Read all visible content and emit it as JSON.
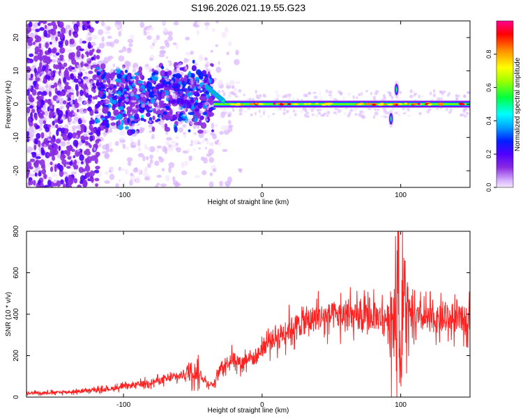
{
  "page_title": "S196.2026.021.19.55.G23",
  "chart_data": [
    {
      "type": "heatmap",
      "title": "S196.2026.021.19.55.G23",
      "xlabel": "Height of straight line (km)",
      "ylabel": "Frequency (Hz)",
      "xlim": [
        -170,
        150
      ],
      "ylim": [
        -25,
        25
      ],
      "xticks": [
        -100,
        0,
        100
      ],
      "yticks": [
        -20,
        -10,
        0,
        10,
        20
      ],
      "colorbar": {
        "label": "Normalized spectral amplitude",
        "range": [
          0,
          1
        ],
        "ticks": [
          0.0,
          0.2,
          0.4,
          0.6,
          0.8
        ],
        "colormap": [
          "#f4e6ff",
          "#d8b4ff",
          "#8a2be2",
          "#5000ff",
          "#0020ff",
          "#00a0ff",
          "#00ffff",
          "#00ff40",
          "#a0ff00",
          "#ffff00",
          "#ff9000",
          "#ff0000",
          "#ff0090"
        ]
      },
      "features": {
        "noise_region_end_km": -35,
        "tone_centre_hz": 0,
        "tone_band_start_km": -35,
        "spike_km": 95,
        "spike_extent_hz": [
          -8,
          8
        ]
      }
    },
    {
      "type": "line",
      "xlabel": "Height of straight line (km)",
      "ylabel": "SNR (10 * v/v)",
      "xlim": [
        -170,
        150
      ],
      "ylim": [
        0,
        800
      ],
      "xticks": [
        -100,
        0,
        100
      ],
      "yticks": [
        0,
        200,
        400,
        600,
        800
      ],
      "color": "#ff2020",
      "series": [
        {
          "name": "SNR",
          "x": [
            -170,
            -150,
            -130,
            -110,
            -90,
            -70,
            -60,
            -50,
            -45,
            -40,
            -35,
            -30,
            -25,
            -20,
            -15,
            -10,
            -5,
            0,
            10,
            20,
            30,
            40,
            50,
            60,
            70,
            80,
            90,
            95,
            98,
            100,
            102,
            105,
            110,
            120,
            130,
            140,
            150
          ],
          "values": [
            20,
            22,
            28,
            40,
            60,
            85,
            100,
            130,
            110,
            70,
            60,
            140,
            170,
            190,
            160,
            200,
            180,
            240,
            290,
            330,
            360,
            385,
            390,
            395,
            380,
            390,
            380,
            400,
            600,
            120,
            520,
            380,
            380,
            375,
            370,
            375,
            380
          ]
        }
      ]
    }
  ]
}
